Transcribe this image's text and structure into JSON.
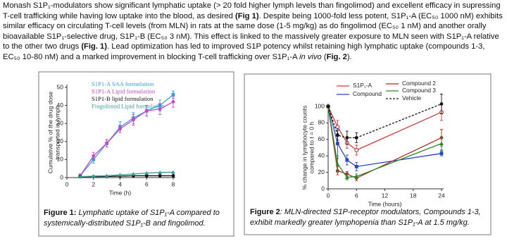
{
  "paragraph": [
    "Monash S1P₁-modulators show significant lymphatic uptake (> 20 fold higher lymph levels than fingolimod) and excellent efficacy in supressing T-cell trafficking while having low uptake into the blood, as desired ",
    "(Fig 1)",
    ". Despite being 1000-fold less potent, S1P₁-A (EC₅₀ 1000 nM) exhibits similar efficacy on circulating T-cell levels (from MLN) in rats at the same dose (1-5 mg/kg) as do fingolimod (EC₅₀ 1 nM) and another orally bioavailable S1P₁-selective drug, S1P₁-B (EC₅₀ 3 nM). This effect is linked to the massively greater exposure to MLN seen with S1P₁-A relative to the other two drugs ",
    "(Fig. 1)",
    ". Lead optimization has led to improved S1P potency whilst retaining high lymphatic uptake (compounds 1-3, EC₅₀ 10-80 nM) and a marked improvement in blocking T-cell trafficking over S1P₁-A ",
    "in vivo",
    " (",
    "Fig. 2",
    ")."
  ],
  "chart_data": [
    {
      "type": "line",
      "xlabel": "Time (h)",
      "ylabel": [
        "Cumulative % of the drug dose",
        "transported in lymph"
      ],
      "x": [
        1,
        2,
        3,
        4,
        5,
        6,
        7,
        8
      ],
      "xlim": [
        0,
        8
      ],
      "xticks": [
        0,
        2,
        4,
        6,
        8
      ],
      "ylim": [
        0,
        50
      ],
      "yticks": [
        0,
        10,
        20,
        30,
        40,
        50
      ],
      "series": [
        {
          "name": "S1P1-A SAA formulation",
          "color": "#35a3d9",
          "marker": "square",
          "values": [
            1,
            10,
            19,
            28,
            33,
            37,
            40,
            46
          ],
          "errors": [
            1,
            2,
            2,
            3,
            3,
            3,
            3,
            2
          ]
        },
        {
          "name": "S1P1-A Lipid formulation",
          "color": "#cc44cc",
          "marker": "circle",
          "values": [
            1,
            12,
            19,
            27,
            32,
            37,
            38,
            42
          ],
          "errors": [
            1,
            2,
            2,
            2,
            3,
            3,
            3,
            3
          ]
        },
        {
          "name": "S1P1-B lipid formulation",
          "color": "#111111",
          "marker": "circle",
          "values": [
            0.5,
            0.5,
            0.6,
            0.8,
            1,
            1,
            1,
            1
          ]
        },
        {
          "name": "Fingolimod Lipid formulation",
          "color": "#3a9a9a",
          "marker": "triangle",
          "values": [
            0.5,
            0.8,
            1,
            1.5,
            2,
            2.5,
            2.8,
            3
          ]
        }
      ]
    },
    {
      "type": "line",
      "xlabel": "Time (hours)",
      "ylabel": [
        "% change in lymphocyte counts",
        "compared to t = 0 h"
      ],
      "x": [
        0,
        2,
        4,
        6,
        24
      ],
      "xlim": [
        0,
        24
      ],
      "xticks": [
        0,
        6,
        12,
        18,
        24
      ],
      "ylim": [
        0,
        100
      ],
      "yticks": [
        0,
        20,
        40,
        60,
        80,
        100
      ],
      "series": [
        {
          "name": "S1P₁-A",
          "color": "#d23a3a",
          "marker": "open-circle",
          "values": [
            100,
            75,
            56,
            47,
            93
          ],
          "errors": [
            0,
            8,
            7,
            6,
            10
          ]
        },
        {
          "name": "Compound",
          "color": "#2a44c4",
          "marker": "square",
          "values": [
            100,
            55,
            35,
            27,
            43
          ],
          "errors": [
            0,
            18,
            6,
            5,
            3
          ]
        },
        {
          "name": "Compound 2",
          "color": "#b02828",
          "marker": "circle",
          "values": [
            100,
            22,
            18,
            13,
            62
          ],
          "errors": [
            0,
            5,
            3,
            3,
            10
          ]
        },
        {
          "name": "Compound 3",
          "color": "#2a8a2a",
          "marker": "triangle",
          "values": [
            100,
            30,
            14,
            15,
            55
          ],
          "errors": [
            0,
            10,
            3,
            3,
            8
          ]
        },
        {
          "name": "Vehicle",
          "color": "#111111",
          "marker": "circle",
          "dashed": true,
          "values": [
            100,
            65,
            62,
            62,
            103
          ],
          "errors": [
            0,
            6,
            8,
            6,
            12
          ]
        }
      ]
    }
  ],
  "captions": [
    {
      "label": "Figure 1:",
      "text": "Lymphatic uptake of S1P₁-A compared to systemically-distributed S1P₁-B and fingolimod."
    },
    {
      "label": "Figure 2",
      "text": ": MLN-directed S1P-receptor modulators, Compounds 1-3, exhibit markedly greater lymphopenia than S1P₁-A at 1.5 mg/kg."
    }
  ]
}
